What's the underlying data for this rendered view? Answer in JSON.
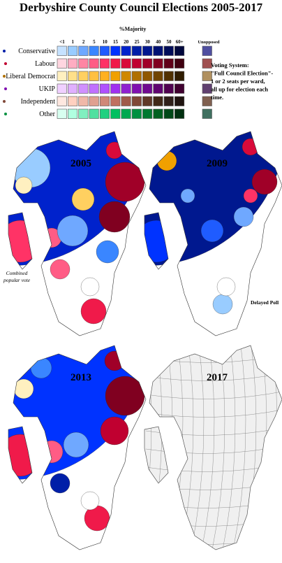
{
  "header": {
    "title": "Derbyshire County Council Elections 2005-2017",
    "subtitle": "%Majority"
  },
  "legend": {
    "columns": [
      "<1",
      "1",
      "2",
      "5",
      "10",
      "15",
      "20",
      "25",
      "30",
      "40",
      "50",
      "60+",
      "Unopposed"
    ],
    "parties": [
      {
        "name": "Conservative",
        "colors": [
          "#c6e2ff",
          "#99ccff",
          "#6fa8ff",
          "#3a86ff",
          "#1f5cff",
          "#0033ff",
          "#0022cc",
          "#001fa8",
          "#00188f",
          "#001273",
          "#000d59",
          "#00083d",
          "#4f4fa0"
        ]
      },
      {
        "name": "Labour",
        "colors": [
          "#ffd6e0",
          "#ffadc2",
          "#ff85a3",
          "#ff5c85",
          "#ff3366",
          "#f01a4a",
          "#d90a3a",
          "#c00030",
          "#a00028",
          "#800020",
          "#600018",
          "#400010",
          "#a05050"
        ]
      },
      {
        "name": "Liberal Democrat",
        "colors": [
          "#fff0c0",
          "#ffe08a",
          "#ffd060",
          "#ffc040",
          "#ffb020",
          "#f0a000",
          "#d08800",
          "#b07000",
          "#905800",
          "#704400",
          "#503000",
          "#301c00",
          "#b09060"
        ]
      },
      {
        "name": "UKIP",
        "colors": [
          "#f0d0ff",
          "#e0b0ff",
          "#d090ff",
          "#c070ff",
          "#b050ff",
          "#a030f0",
          "#9020d0",
          "#8010b0",
          "#700a90",
          "#600570",
          "#500350",
          "#400130",
          "#604070"
        ]
      },
      {
        "name": "Independent",
        "colors": [
          "#ffe8e0",
          "#ffd0c0",
          "#f0b8a8",
          "#e0a090",
          "#d08878",
          "#c07060",
          "#a05a4a",
          "#804838",
          "#603828",
          "#402818",
          "#30201a",
          "#201410",
          "#806050"
        ]
      },
      {
        "name": "Other",
        "colors": [
          "#d8fff0",
          "#b0ffe0",
          "#80f0c0",
          "#50e0a0",
          "#20d080",
          "#00c060",
          "#00a850",
          "#009040",
          "#007830",
          "#006020",
          "#004818",
          "#003010",
          "#407060"
        ]
      }
    ]
  },
  "voting_system": [
    "Voting System:",
    "\"Full Council Election\"-",
    "1 or 2 seats per ward,",
    "all up for election each",
    "time."
  ],
  "maps": [
    {
      "label": "2005",
      "note": [
        "Combined",
        "popular vote"
      ]
    },
    {
      "label": "2009",
      "note": [
        "Delayed Poll"
      ]
    },
    {
      "label": "2013"
    },
    {
      "label": "2017"
    }
  ]
}
